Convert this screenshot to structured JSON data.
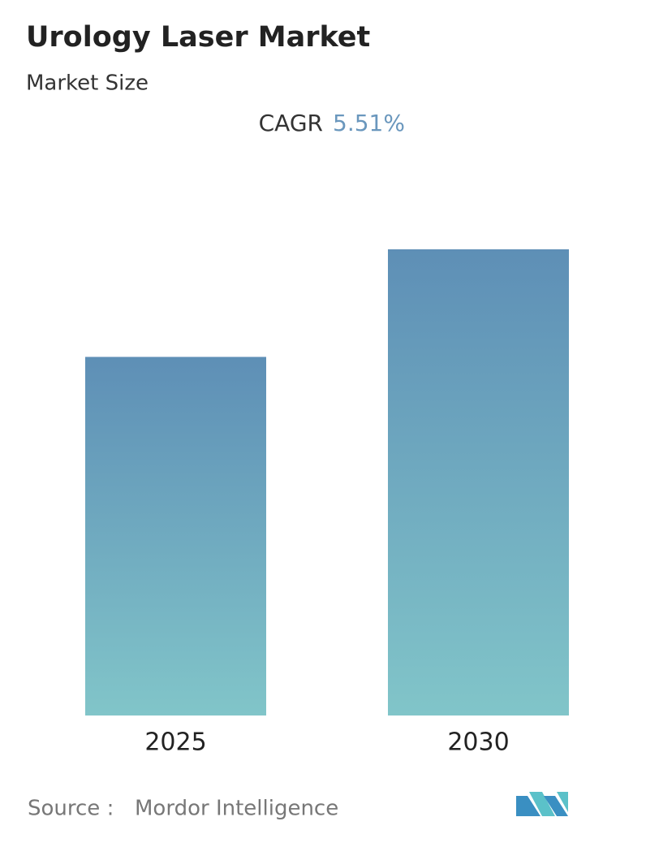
{
  "chart_data": {
    "type": "bar",
    "title": "Urology Laser Market",
    "subtitle": "Market Size",
    "cagr_label": "CAGR",
    "cagr_value": "5.51%",
    "categories": [
      "2025",
      "2030"
    ],
    "values": [
      100,
      130
    ],
    "color": [
      "#5e8fb6",
      "#81c5c9"
    ],
    "source_label": "Source :",
    "source": "Mordor Intelligence"
  }
}
